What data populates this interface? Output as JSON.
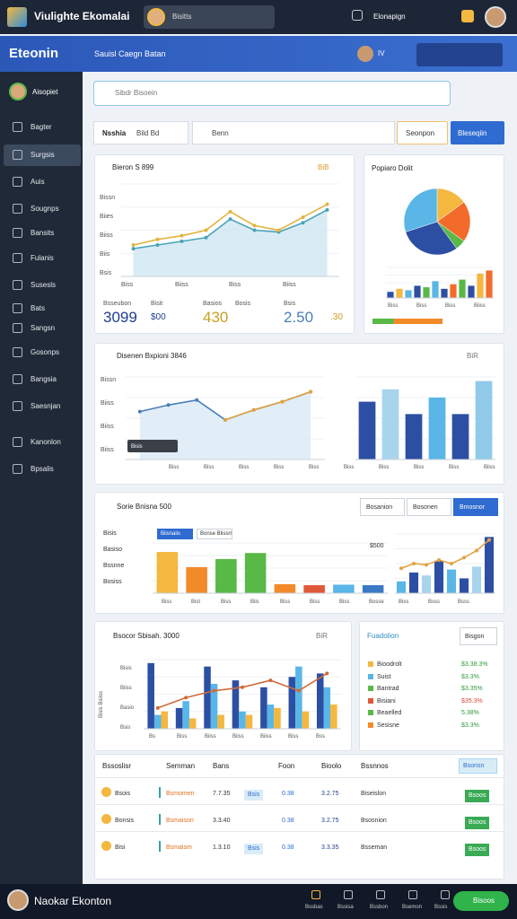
{
  "app": {
    "title": "Viulighte Ekomalai",
    "search_user": "Bisitts",
    "right_label": "Elonapign"
  },
  "header": {
    "title": "Eteonin",
    "subtitle": "Sauisl Caegn Batan",
    "badge": "IV"
  },
  "sidebar": {
    "user": "Aisopiet",
    "items": [
      "Bagter",
      "Surgsis",
      "Auis",
      "Sougnps",
      "Bansits",
      "Fulanis",
      "Susesls",
      "Bats",
      "Sangsn",
      "Gosonps",
      "Bangsia",
      "Saesnjan",
      "Kanonlon",
      "Bpsalis"
    ]
  },
  "search": {
    "placeholder": "Sibdr Bisoein"
  },
  "filters": {
    "label": "Nsshia",
    "select": "Bild Bd",
    "search": "Benn",
    "button1": "Seonpon",
    "button2": "Bleseqiin"
  },
  "panel1": {
    "title": "Bieron S 899",
    "tag": "BiB",
    "ylabels": [
      "Bissn",
      "Biies",
      "Biiss",
      "Biis",
      "Bsis"
    ],
    "xlabels": [
      "Biss",
      "Biiss",
      "Biss",
      "Biiss"
    ],
    "chart": {
      "ylim": [
        0,
        100
      ],
      "lines": [
        {
          "color": "#4aa3b8",
          "fill": "#cfe6f2",
          "values": [
            30,
            34,
            38,
            42,
            62,
            50,
            48,
            58,
            72
          ]
        },
        {
          "color": "#e3b341",
          "values": [
            34,
            40,
            44,
            50,
            70,
            55,
            50,
            64,
            78
          ]
        }
      ]
    },
    "stats": [
      {
        "label": "Bsseubon",
        "value": "3099"
      },
      {
        "label": "Bisit",
        "value": "$00"
      },
      {
        "label": "Basios",
        "value": "430"
      },
      {
        "label": "Bosis",
        "value": "2.50"
      },
      {
        "label": "Bsis",
        "value": ".30"
      }
    ]
  },
  "pie_panel": {
    "title": "Popiaro Dolit",
    "pie": {
      "values": [
        15,
        20,
        5,
        30,
        30
      ],
      "colors": [
        "#f4b73f",
        "#f26b2a",
        "#58b947",
        "#2d4fa3",
        "#59b6e6"
      ]
    },
    "bars": {
      "ylim": [
        0,
        100
      ],
      "bars": [
        {
          "colors": [
            "#2d4fa3",
            "#f4b73f",
            "#59b6e6",
            "#2d4fa3",
            "#58b947",
            "#59b6e6",
            "#2d4fa3",
            "#f26b2a",
            "#58b947",
            "#2d4fa3",
            "#f4b73f",
            "#f26b2a"
          ],
          "values": [
            20,
            30,
            25,
            40,
            35,
            55,
            30,
            45,
            60,
            40,
            80,
            90
          ]
        }
      ]
    },
    "xlabels": [
      "Biss",
      "Biss",
      "Biss",
      "Biiss"
    ]
  },
  "panel2": {
    "title": "Disenen Bxpioni 3846",
    "tag": "BiR",
    "ylabels": [
      "Bissn",
      "Biiss",
      "Biiss",
      "Biiss"
    ],
    "xlabels": [
      "Biss",
      "Biss",
      "Biss",
      "Biss",
      "Biss",
      "Biss",
      "Biss",
      "Biss",
      "Biss",
      "Biiss"
    ],
    "tooltip": "Bisis",
    "line": {
      "ylim": [
        0,
        100
      ],
      "lines": [
        {
          "color": "#4a7fb8",
          "fill": "#dbeaf5",
          "values": [
            58,
            66,
            72,
            48,
            60,
            70,
            82
          ]
        },
        {
          "color": "#e3a341",
          "values": [
            null,
            null,
            null,
            48,
            60,
            70,
            82
          ]
        }
      ]
    },
    "bars": {
      "ylim": [
        0,
        100
      ],
      "bars": [
        {
          "colors": [
            "#2d4fa3",
            "#a8d4ee",
            "#2d4fa3",
            "#59b6e6",
            "#2d4fa3",
            "#8fcbe8"
          ],
          "values": [
            70,
            85,
            55,
            75,
            55,
            95
          ]
        }
      ]
    }
  },
  "panel3": {
    "title": "Sorie Bnisna 500",
    "buttons": [
      "Bosanion",
      "Bosonen",
      "Bmosnor"
    ],
    "legend": [
      "Biisnaiis",
      "Bonse Blissrr"
    ],
    "ylabels": [
      "Bisis",
      "Basiso",
      "Bssnne",
      "Bosiss"
    ],
    "xlabels": [
      "Biss",
      "Bist",
      "Biss",
      "Biis",
      "Biss",
      "Biss",
      "Biss",
      "Bosse",
      "Biss",
      "Bsss",
      "Bsss"
    ],
    "chart_label": "$500",
    "bars": {
      "ylim": [
        0,
        100
      ],
      "bars": [
        {
          "colors": [
            "#f4b73f",
            "#f28a2a",
            "#58b947",
            "#58b947",
            "#f28a2a",
            "#e0583a",
            "#59b6e6",
            "#3a7ac4"
          ],
          "values": [
            82,
            52,
            68,
            80,
            18,
            16,
            17,
            16
          ]
        }
      ]
    },
    "combo": {
      "ylim": [
        0,
        100
      ],
      "bars": [
        {
          "colors": [
            "#59b6e6",
            "#2d4fa3",
            "#a8d4ee",
            "#2d4fa3",
            "#59b6e6",
            "#2d4fa3",
            "#a8d4ee",
            "#2d4fa3"
          ],
          "values": [
            20,
            35,
            30,
            55,
            40,
            25,
            45,
            95
          ]
        }
      ],
      "lines": [
        {
          "color": "#e3a341",
          "values": [
            42,
            50,
            48,
            56,
            50,
            60,
            72,
            90
          ]
        }
      ]
    }
  },
  "panel4": {
    "title": "Bsocor Sbisah. 3000",
    "tag": "BiR",
    "ylabel": "Bisis Bsiiss",
    "ylabels": [
      "Bisis",
      "Biiss",
      "Basio",
      "Bsis"
    ],
    "xlabels": [
      "Bs",
      "Biss",
      "Biiss",
      "Biiss",
      "Biiss",
      "Biss",
      "Bss"
    ],
    "chart": {
      "ylim": [
        0,
        100
      ],
      "bars": [
        {
          "color": "#2d4fa3",
          "values": [
            95,
            30,
            90,
            70,
            60,
            75,
            80
          ]
        },
        {
          "color": "#59b6e6",
          "values": [
            20,
            40,
            65,
            25,
            35,
            90,
            60
          ]
        },
        {
          "color": "#f4b73f",
          "values": [
            25,
            15,
            20,
            20,
            30,
            25,
            35
          ]
        }
      ],
      "lines": [
        {
          "color": "#d06a3a",
          "values": [
            30,
            45,
            55,
            60,
            70,
            55,
            80
          ]
        }
      ]
    }
  },
  "list_panel": {
    "title": "Fuadolion",
    "dropdown": "Bisgon",
    "items": [
      {
        "name": "Bioodrolt",
        "value": "$3.38.3%",
        "color": "#f4b73f"
      },
      {
        "name": "Suist",
        "value": "$3.3%",
        "color": "#59b6e6"
      },
      {
        "name": "Bantrad",
        "value": "$3.35%",
        "color": "#58b947"
      },
      {
        "name": "Bisiani",
        "value": "$35.3%",
        "color": "#e0583a"
      },
      {
        "name": "Beaelled",
        "value": "5.38%",
        "color": "#58b947"
      },
      {
        "name": "Sesisne",
        "value": "$3.3%",
        "color": "#f28a2a"
      }
    ]
  },
  "table": {
    "headers": [
      "Bssoslisr",
      "Semman",
      "Bans",
      "Foon",
      "Bioolo",
      "Bssnnos"
    ],
    "action": "Bsonsn",
    "rows": [
      [
        "Bsois",
        "Bsmomen",
        "7.7.35",
        "Bsis",
        "0.38",
        "3.2.75",
        "Biseislon",
        "Bsoos"
      ],
      [
        "Bonsis",
        "Bsmaison",
        "3.3.40",
        "",
        "0.38",
        "3.2.75",
        "Bsosnion",
        "Bsoos"
      ],
      [
        "Bisi",
        "Bsmaism",
        "1.3.10",
        "Bsis",
        "0.38",
        "3.3.35",
        "Bsseman",
        "Bsoos"
      ]
    ]
  },
  "footer": {
    "user": "Naokar Ekonton",
    "nav": [
      "Bssbas",
      "Bssisa",
      "Bssbon",
      "Bsemon",
      "Bssis"
    ],
    "button": "Bisoos"
  }
}
